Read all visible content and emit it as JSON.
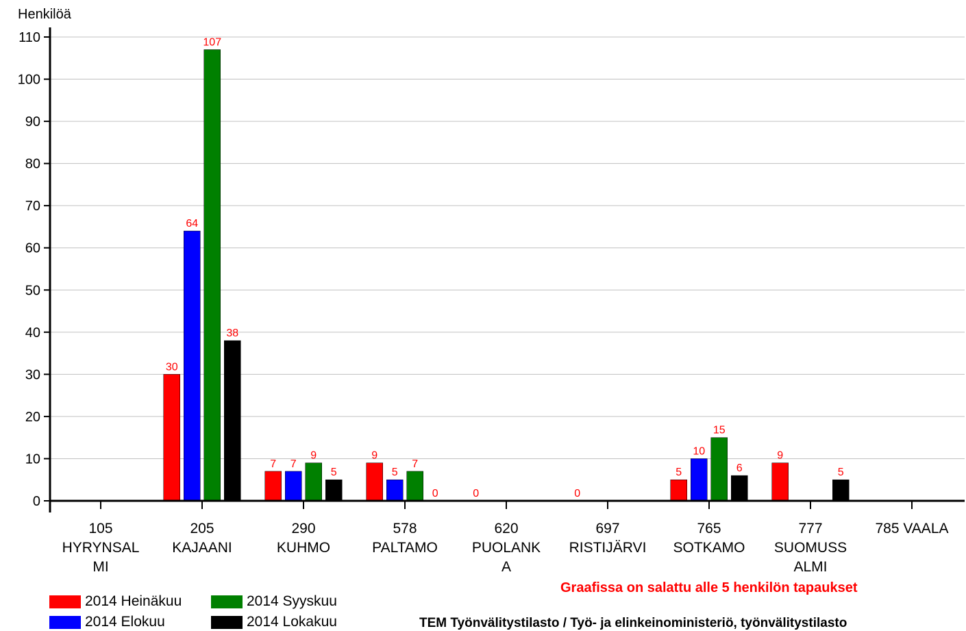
{
  "chart_data": {
    "type": "bar",
    "ylabel": "Henkilöä",
    "ylim": [
      0,
      110
    ],
    "yticks": [
      0,
      10,
      20,
      30,
      40,
      50,
      60,
      70,
      80,
      90,
      100,
      110
    ],
    "grid": true,
    "legend_position": "bottom-left",
    "categories": [
      [
        "105",
        "HYRYNSAL",
        "MI"
      ],
      [
        "205",
        "KAJAANI"
      ],
      [
        "290",
        "KUHMO"
      ],
      [
        "578",
        "PALTAMO"
      ],
      [
        "620",
        "PUOLANK",
        "A"
      ],
      [
        "697",
        "RISTIJÄRVI"
      ],
      [
        "765",
        "SOTKAMO"
      ],
      [
        "777",
        "SUOMUSS",
        "ALMI"
      ],
      [
        "785 VAALA"
      ]
    ],
    "series": [
      {
        "name": "2014 Heinäkuu",
        "color": "#ff0000",
        "values": [
          null,
          30,
          7,
          9,
          0,
          0,
          5,
          9,
          null
        ]
      },
      {
        "name": "2014 Elokuu",
        "color": "#0000ff",
        "values": [
          null,
          64,
          7,
          5,
          null,
          null,
          10,
          null,
          null
        ]
      },
      {
        "name": "2014 Syyskuu",
        "color": "#008000",
        "values": [
          null,
          107,
          9,
          7,
          null,
          null,
          15,
          null,
          null
        ]
      },
      {
        "name": "2014 Lokakuu",
        "color": "#000000",
        "values": [
          null,
          38,
          5,
          0,
          null,
          null,
          6,
          5,
          null
        ]
      }
    ],
    "label_color": "#ff0000",
    "note": "Graafissa on salattu alle 5 henkilön tapaukset",
    "source": "TEM Työnvälitystilasto / Työ- ja elinkeinoministeriö, työnvälitystilasto"
  }
}
